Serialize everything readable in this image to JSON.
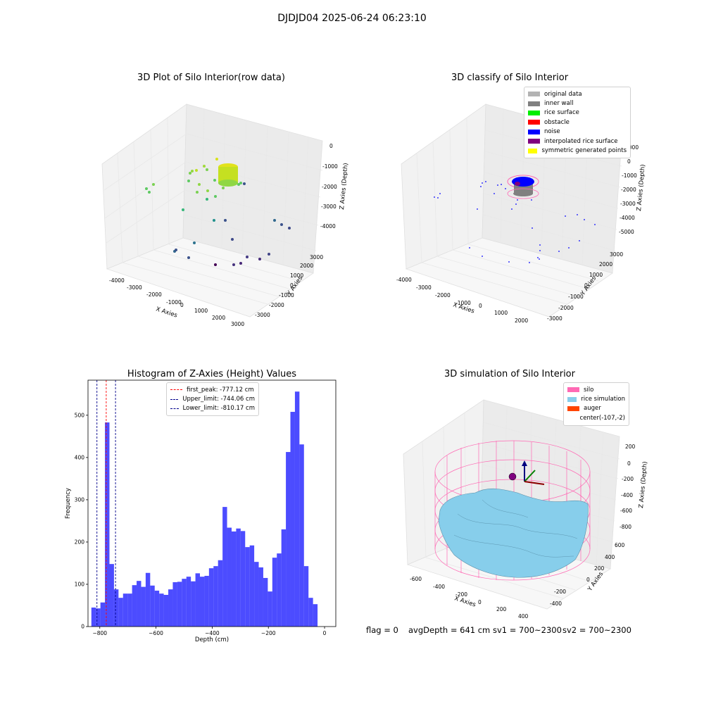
{
  "suptitle": "DJDJD04 2025-06-24 06:23:10",
  "footer": {
    "flag": "flag = 0",
    "avg_depth": "avgDepth = 641 cm",
    "sv1": "sv1 = 700~2300",
    "sv2": "sv2 = 700~2300"
  },
  "chart_data": [
    {
      "type": "scatter",
      "title": "3D Plot of Silo Interior(row data)",
      "xlabel": "X Axies",
      "ylabel": "Y Axies",
      "zlabel": "Z Axies (Depth)",
      "xticks": [
        "-4000",
        "-3000",
        "-2000",
        "-1000",
        "0",
        "1000",
        "2000",
        "3000"
      ],
      "yticks": [
        "-3000",
        "-2000",
        "-1000",
        "0",
        "1000",
        "2000",
        "3000"
      ],
      "zticks": [
        "0",
        "-1000",
        "-2000",
        "-3000",
        "-4000"
      ],
      "grid": true
    },
    {
      "type": "scatter",
      "title": "3D classify of Silo Interior",
      "xlabel": "X Axies",
      "ylabel": "Y Axies",
      "zlabel": "Z Axies (Depth)",
      "xticks": [
        "-4000",
        "-3000",
        "-2000",
        "-1000",
        "0",
        "1000",
        "2000"
      ],
      "yticks": [
        "-3000",
        "-2000",
        "-1000",
        "0",
        "1000",
        "2000",
        "3000"
      ],
      "zticks": [
        "1000",
        "0",
        "-1000",
        "-2000",
        "-3000",
        "-4000",
        "-5000"
      ],
      "legend_position": "top-right",
      "legend": [
        {
          "label": "original data",
          "color": "#b3b3b3"
        },
        {
          "label": "inner wall",
          "color": "#808080"
        },
        {
          "label": "rice surface",
          "color": "#00ee00"
        },
        {
          "label": "obstacle",
          "color": "#ff0000"
        },
        {
          "label": "noise",
          "color": "#0000ff"
        },
        {
          "label": "interpolated rice surface",
          "color": "#800080"
        },
        {
          "label": "symmetric generated points",
          "color": "#ffff00"
        }
      ],
      "grid": true
    },
    {
      "type": "bar",
      "title": "Histogram of Z-Axies (Height) Values",
      "xlabel": "Depth (cm)",
      "ylabel": "Frequency",
      "xlim": [
        -842,
        40
      ],
      "ylim": [
        0,
        583
      ],
      "xticks": [
        -800,
        -600,
        -400,
        -200,
        0
      ],
      "yticks": [
        0,
        100,
        200,
        300,
        400,
        500
      ],
      "bin_start": -830,
      "bin_width": 16.1,
      "values": [
        45,
        43,
        57,
        483,
        148,
        88,
        68,
        78,
        78,
        98,
        108,
        94,
        127,
        97,
        85,
        78,
        75,
        88,
        105,
        106,
        113,
        118,
        107,
        126,
        118,
        120,
        138,
        143,
        157,
        283,
        234,
        225,
        232,
        226,
        188,
        192,
        153,
        140,
        115,
        83,
        163,
        173,
        230,
        413,
        508,
        556,
        431,
        143,
        68,
        53
      ],
      "color": "#0000ff",
      "vlines": [
        {
          "label": "first_peak: -777.12 cm",
          "x": -777.12,
          "color": "#ff0000"
        },
        {
          "label": "Upper_limit: -744.06 cm",
          "x": -744.06,
          "color": "#00008b"
        },
        {
          "label": "Lower_limit: -810.17 cm",
          "x": -810.17,
          "color": "#00008b"
        }
      ],
      "legend_position": "top-center"
    },
    {
      "type": "surface",
      "title": "3D simulation of Silo Interior",
      "xlabel": "X Axies",
      "ylabel": "Y Axies",
      "zlabel": "Z Axies (Depth)",
      "xticks": [
        "-600",
        "-400",
        "-200",
        "0",
        "200",
        "400"
      ],
      "yticks": [
        "-400",
        "-200",
        "0",
        "200",
        "400",
        "600"
      ],
      "zticks": [
        "200",
        "0",
        "-200",
        "-400",
        "-600",
        "-800"
      ],
      "legend_position": "top-right",
      "legend": [
        {
          "label": "silo",
          "color": "#ff69b4"
        },
        {
          "label": "rice simulation",
          "color": "#87ceeb"
        },
        {
          "label": "auger",
          "color": "#ff4500"
        },
        {
          "label": "center(-107,-2)",
          "color": ""
        }
      ],
      "grid": true
    }
  ]
}
